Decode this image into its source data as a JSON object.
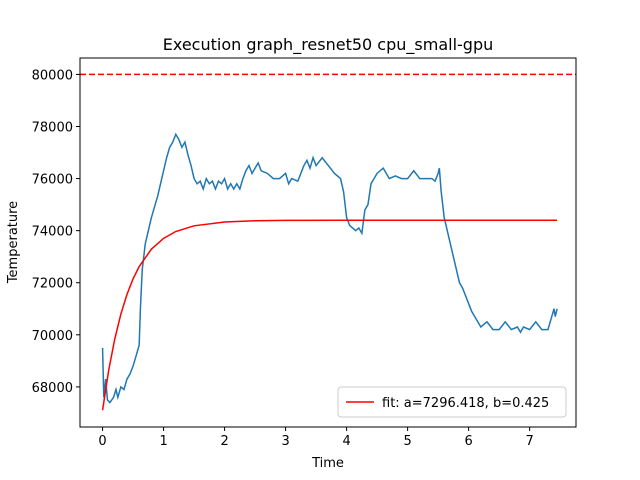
{
  "chart_data": {
    "type": "line",
    "title": "Execution graph_resnet50 cpu_small-gpu",
    "xlabel": "Time",
    "ylabel": "Temperature",
    "xlim": [
      -0.37,
      7.76
    ],
    "ylim": [
      66460,
      80630
    ],
    "xticks": [
      0,
      1,
      2,
      3,
      4,
      5,
      6,
      7
    ],
    "yticks": [
      68000,
      70000,
      72000,
      74000,
      76000,
      78000,
      80000
    ],
    "legend": "lower right",
    "hlines": [
      {
        "y": 80000,
        "color": "#ff0000",
        "style": "dashed"
      }
    ],
    "series": [
      {
        "color": "#1f77b4",
        "x": [
          0,
          0.02,
          0.05,
          0.08,
          0.12,
          0.18,
          0.22,
          0.25,
          0.3,
          0.35,
          0.4,
          0.45,
          0.5,
          0.55,
          0.6,
          0.62,
          0.65,
          0.7,
          0.75,
          0.8,
          0.85,
          0.9,
          0.95,
          1.0,
          1.05,
          1.1,
          1.15,
          1.2,
          1.25,
          1.3,
          1.35,
          1.4,
          1.45,
          1.5,
          1.55,
          1.6,
          1.65,
          1.7,
          1.75,
          1.8,
          1.85,
          1.9,
          1.95,
          2.0,
          2.05,
          2.1,
          2.15,
          2.2,
          2.25,
          2.3,
          2.35,
          2.4,
          2.45,
          2.5,
          2.55,
          2.6,
          2.7,
          2.8,
          2.9,
          3.0,
          3.05,
          3.1,
          3.2,
          3.25,
          3.3,
          3.35,
          3.4,
          3.45,
          3.5,
          3.6,
          3.7,
          3.8,
          3.9,
          3.95,
          4.0,
          4.05,
          4.1,
          4.15,
          4.2,
          4.25,
          4.3,
          4.35,
          4.4,
          4.5,
          4.6,
          4.7,
          4.8,
          4.9,
          5.0,
          5.1,
          5.2,
          5.3,
          5.4,
          5.45,
          5.5,
          5.52,
          5.55,
          5.6,
          5.7,
          5.8,
          5.85,
          5.9,
          5.95,
          6.0,
          6.05,
          6.1,
          6.15,
          6.2,
          6.3,
          6.4,
          6.5,
          6.6,
          6.7,
          6.8,
          6.85,
          6.9,
          7.0,
          7.1,
          7.2,
          7.3,
          7.35,
          7.4,
          7.42,
          7.45
        ],
        "values": [
          69500,
          67600,
          68300,
          67500,
          67400,
          67600,
          67900,
          67600,
          68000,
          67900,
          68300,
          68500,
          68800,
          69200,
          69600,
          71000,
          72500,
          73500,
          74000,
          74500,
          74900,
          75300,
          75800,
          76300,
          76800,
          77200,
          77400,
          77700,
          77500,
          77200,
          77400,
          76900,
          76500,
          76000,
          75800,
          75900,
          75600,
          76000,
          75800,
          75900,
          75600,
          75900,
          75800,
          76000,
          75600,
          75800,
          75600,
          75800,
          75600,
          76000,
          76300,
          76500,
          76200,
          76400,
          76600,
          76300,
          76200,
          76000,
          76000,
          76200,
          75800,
          76000,
          75900,
          76200,
          76500,
          76700,
          76400,
          76800,
          76500,
          76800,
          76500,
          76200,
          76000,
          75500,
          74500,
          74200,
          74100,
          74000,
          74100,
          73900,
          74800,
          75000,
          75800,
          76200,
          76400,
          76000,
          76100,
          76000,
          76000,
          76300,
          76000,
          76000,
          76000,
          75900,
          76200,
          76400,
          75500,
          74500,
          73500,
          72500,
          72000,
          71800,
          71500,
          71200,
          70900,
          70700,
          70500,
          70300,
          70500,
          70200,
          70200,
          70500,
          70200,
          70300,
          70100,
          70300,
          70200,
          70500,
          70200,
          70200,
          70600,
          71000,
          70700,
          71000
        ]
      },
      {
        "name": "fit: a=7296.418, b=0.425",
        "color": "#ff0000",
        "x": [
          0,
          0.1,
          0.2,
          0.3,
          0.4,
          0.5,
          0.6,
          0.8,
          1.0,
          1.2,
          1.5,
          2.0,
          2.5,
          3.0,
          4.0,
          7.45
        ],
        "values": [
          67104,
          68636,
          69843,
          70798,
          71554,
          72150,
          72622,
          73289,
          73706,
          73967,
          74186,
          74334,
          74380,
          74396,
          74400,
          74400
        ]
      }
    ]
  }
}
